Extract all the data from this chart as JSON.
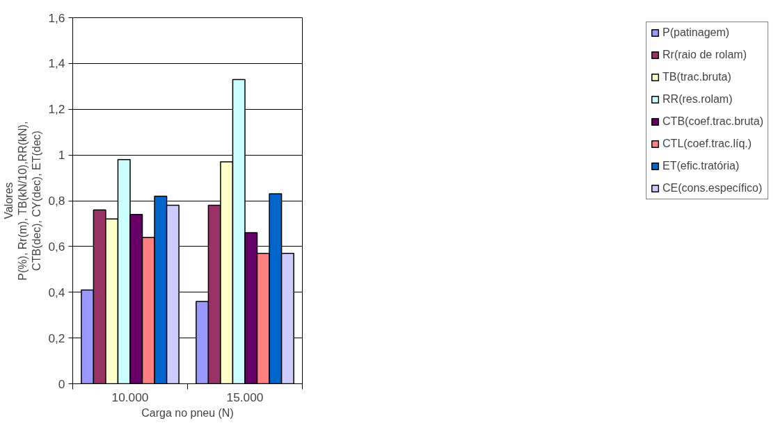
{
  "chart_data": {
    "type": "bar",
    "xlabel": "Carga no pneu (N)",
    "ylabel": "Valores\nP(%), Rr(m), TB(kN/10),RR(kN),\nCTB(dec), CY(dec), ET(dec)",
    "categories": [
      "10.000",
      "15.000"
    ],
    "series": [
      {
        "name": "P(patinagem)",
        "color": "#9999ff",
        "values": [
          0.41,
          0.36
        ]
      },
      {
        "name": "Rr(raio de rolam)",
        "color": "#993366",
        "values": [
          0.76,
          0.78
        ]
      },
      {
        "name": "TB(trac.bruta)",
        "color": "#ffffcc",
        "values": [
          0.72,
          0.97
        ]
      },
      {
        "name": "RR(res.rolam)",
        "color": "#ccffff",
        "values": [
          0.98,
          1.33
        ]
      },
      {
        "name": "CTB(coef.trac.bruta)",
        "color": "#660066",
        "values": [
          0.74,
          0.66
        ]
      },
      {
        "name": "CTL(coef.trac.líq.)",
        "color": "#ff8080",
        "values": [
          0.64,
          0.57
        ]
      },
      {
        "name": "ET(efic.tratória)",
        "color": "#0066cc",
        "values": [
          0.82,
          0.83
        ]
      },
      {
        "name": "CE(cons.específico)",
        "color": "#ccccff",
        "values": [
          0.78,
          0.57
        ]
      }
    ],
    "ylim": [
      0,
      1.6
    ],
    "yticks": [
      0,
      {
        "value": 0.2,
        "label": "0,2"
      },
      {
        "value": 0.4,
        "label": "0,4"
      },
      {
        "value": 0.6,
        "label": "0,6"
      },
      {
        "value": 0.8,
        "label": "0,8"
      },
      1,
      {
        "value": 1.2,
        "label": "1,2"
      },
      {
        "value": 1.4,
        "label": "1,4"
      },
      {
        "value": 1.6,
        "label": "1,6"
      }
    ],
    "grid": "y",
    "legend": "right"
  }
}
